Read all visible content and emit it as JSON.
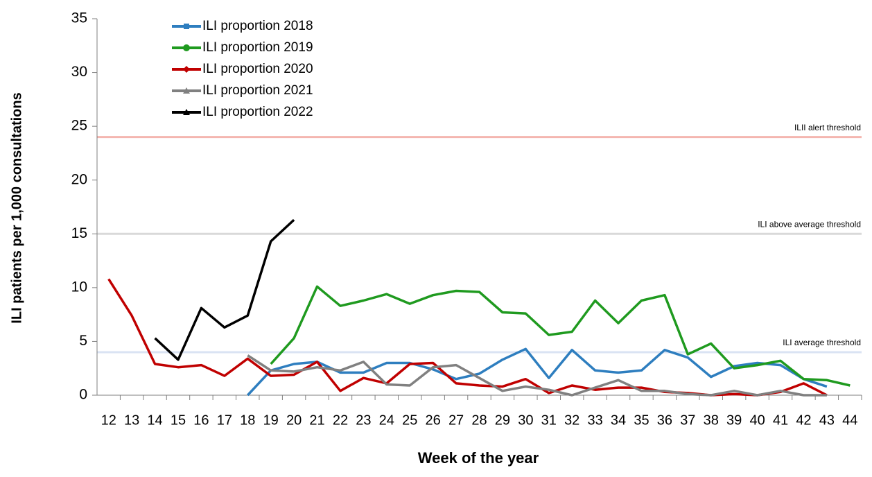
{
  "chart_data": {
    "type": "line",
    "y_label": "ILI patients per 1,000 consultations",
    "x_label": "Week of the year",
    "categories": [
      12,
      13,
      14,
      15,
      16,
      17,
      18,
      19,
      20,
      21,
      22,
      23,
      24,
      25,
      26,
      27,
      28,
      29,
      30,
      31,
      32,
      33,
      34,
      35,
      36,
      37,
      38,
      39,
      40,
      41,
      42,
      43,
      44
    ],
    "series": [
      {
        "name": "ILI proportion 2018",
        "color": "#2e7ebf",
        "marker": "square",
        "values": [
          null,
          null,
          null,
          null,
          null,
          null,
          0,
          2.3,
          2.9,
          3.1,
          2.1,
          2.1,
          3.0,
          3.0,
          2.4,
          1.5,
          2.0,
          3.3,
          4.3,
          1.6,
          4.2,
          2.3,
          2.1,
          2.3,
          4.2,
          3.5,
          1.7,
          2.7,
          3.0,
          2.8,
          1.5,
          0.8,
          null
        ]
      },
      {
        "name": "ILI proportion 2019",
        "color": "#1f9a1f",
        "marker": "circle",
        "values": [
          null,
          null,
          null,
          null,
          null,
          null,
          null,
          2.9,
          5.3,
          10.1,
          8.3,
          8.8,
          9.4,
          8.5,
          9.3,
          9.7,
          9.6,
          7.7,
          7.6,
          5.6,
          5.9,
          8.8,
          6.7,
          8.8,
          9.3,
          3.8,
          4.8,
          2.5,
          2.8,
          3.2,
          1.5,
          1.4,
          0.9
        ]
      },
      {
        "name": "ILI proportion 2020",
        "color": "#c00000",
        "marker": "diamond",
        "values": [
          10.8,
          7.4,
          2.9,
          2.6,
          2.8,
          1.8,
          3.4,
          1.8,
          1.9,
          3.1,
          0.4,
          1.6,
          1.1,
          2.9,
          3.0,
          1.1,
          0.9,
          0.8,
          1.5,
          0.2,
          0.9,
          0.5,
          0.7,
          0.7,
          0.3,
          0.2,
          0.0,
          0.1,
          0.0,
          0.3,
          1.1,
          0.0,
          null
        ]
      },
      {
        "name": "ILI proportion 2021",
        "color": "#808080",
        "marker": "triangle",
        "values": [
          null,
          null,
          null,
          null,
          null,
          null,
          3.7,
          2.3,
          2.2,
          2.6,
          2.3,
          3.1,
          1.0,
          0.9,
          2.6,
          2.8,
          1.6,
          0.4,
          0.8,
          0.5,
          0.0,
          0.7,
          1.4,
          0.4,
          0.4,
          0.1,
          0.0,
          0.4,
          0.0,
          0.4,
          0.0,
          0.0,
          null
        ]
      },
      {
        "name": "ILI proportion 2022",
        "color": "#000000",
        "marker": "triangle",
        "values": [
          null,
          null,
          5.3,
          3.3,
          8.1,
          6.3,
          7.4,
          14.3,
          16.3,
          null,
          null,
          null,
          null,
          null,
          null,
          null,
          null,
          null,
          null,
          null,
          null,
          null,
          null,
          null,
          null,
          null,
          null,
          null,
          null,
          null,
          null,
          null,
          null
        ]
      }
    ],
    "thresholds": [
      {
        "label": "ILII alert threshold",
        "value": 24,
        "color": "#f4b6b0"
      },
      {
        "label": "ILI above average threshold",
        "value": 15,
        "color": "#d9d9d9"
      },
      {
        "label": "ILI average threshold",
        "value": 4,
        "color": "#dae3f3"
      }
    ],
    "ylim": [
      0,
      35
    ],
    "yticks": [
      0,
      5,
      10,
      15,
      20,
      25,
      30,
      35
    ],
    "grid": false
  }
}
